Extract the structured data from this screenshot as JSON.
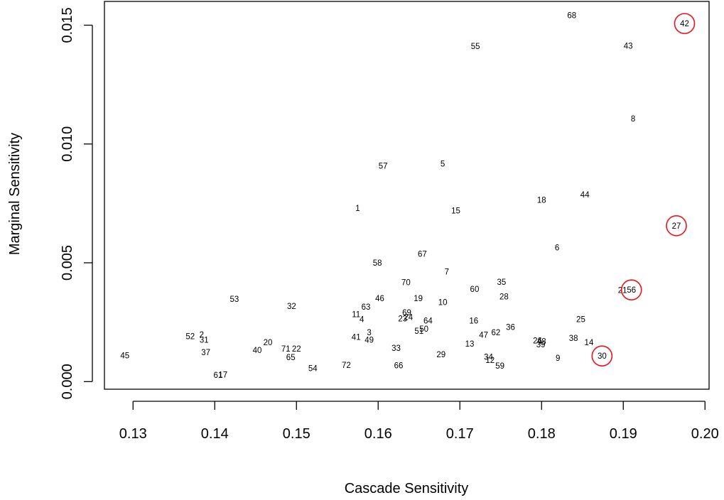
{
  "chart_data": {
    "type": "scatter",
    "xlabel": "Cascade Sensitivity",
    "ylabel": "Marginal Sensitivity",
    "xlim": [
      0.1265,
      0.2005
    ],
    "ylim": [
      -0.00032,
      0.016
    ],
    "xticks": [
      {
        "v": 0.13,
        "label": "0.13"
      },
      {
        "v": 0.14,
        "label": "0.14"
      },
      {
        "v": 0.15,
        "label": "0.15"
      },
      {
        "v": 0.16,
        "label": "0.16"
      },
      {
        "v": 0.17,
        "label": "0.17"
      },
      {
        "v": 0.18,
        "label": "0.18"
      },
      {
        "v": 0.19,
        "label": "0.19"
      },
      {
        "v": 0.2,
        "label": "0.20"
      }
    ],
    "yticks": [
      {
        "v": 0.0,
        "label": "0.000"
      },
      {
        "v": 0.005,
        "label": "0.005"
      },
      {
        "v": 0.01,
        "label": "0.010"
      },
      {
        "v": 0.015,
        "label": "0.015"
      }
    ],
    "grid": false,
    "highlight_color": "#e8141c",
    "points": [
      {
        "label": "68",
        "x": 0.1837,
        "y": 0.01542
      },
      {
        "label": "42",
        "x": 0.1975,
        "y": 0.01507,
        "highlight": true
      },
      {
        "label": "55",
        "x": 0.1719,
        "y": 0.01412
      },
      {
        "label": "43",
        "x": 0.1906,
        "y": 0.01413
      },
      {
        "label": "8",
        "x": 0.1912,
        "y": 0.01107
      },
      {
        "label": "57",
        "x": 0.1606,
        "y": 0.00908
      },
      {
        "label": "5",
        "x": 0.1679,
        "y": 0.00917
      },
      {
        "label": "44",
        "x": 0.1853,
        "y": 0.00787
      },
      {
        "label": "18",
        "x": 0.18,
        "y": 0.00764
      },
      {
        "label": "1",
        "x": 0.1575,
        "y": 0.0073
      },
      {
        "label": "15",
        "x": 0.1695,
        "y": 0.0072
      },
      {
        "label": "27",
        "x": 0.1965,
        "y": 0.00656,
        "highlight": true
      },
      {
        "label": "6",
        "x": 0.1819,
        "y": 0.00565
      },
      {
        "label": "67",
        "x": 0.1654,
        "y": 0.00538
      },
      {
        "label": "58",
        "x": 0.1599,
        "y": 0.005
      },
      {
        "label": "7",
        "x": 0.1684,
        "y": 0.00462
      },
      {
        "label": "70",
        "x": 0.1634,
        "y": 0.00418
      },
      {
        "label": "35",
        "x": 0.1751,
        "y": 0.0042
      },
      {
        "label": "60",
        "x": 0.1718,
        "y": 0.0039
      },
      {
        "label": "21",
        "x": 0.1899,
        "y": 0.00385
      },
      {
        "label": "56",
        "x": 0.191,
        "y": 0.00386,
        "highlight": true
      },
      {
        "label": "53",
        "x": 0.1424,
        "y": 0.00348
      },
      {
        "label": "46",
        "x": 0.1602,
        "y": 0.0035
      },
      {
        "label": "19",
        "x": 0.1649,
        "y": 0.0035
      },
      {
        "label": "28",
        "x": 0.1754,
        "y": 0.00358
      },
      {
        "label": "10",
        "x": 0.1679,
        "y": 0.00334
      },
      {
        "label": "32",
        "x": 0.1494,
        "y": 0.00318
      },
      {
        "label": "63",
        "x": 0.1585,
        "y": 0.00315
      },
      {
        "label": "11",
        "x": 0.1573,
        "y": 0.00283
      },
      {
        "label": "69",
        "x": 0.1635,
        "y": 0.00291
      },
      {
        "label": "4",
        "x": 0.158,
        "y": 0.00262
      },
      {
        "label": "23",
        "x": 0.163,
        "y": 0.00265
      },
      {
        "label": "24",
        "x": 0.1637,
        "y": 0.00272
      },
      {
        "label": "64",
        "x": 0.1661,
        "y": 0.00256
      },
      {
        "label": "16",
        "x": 0.1717,
        "y": 0.00257
      },
      {
        "label": "25",
        "x": 0.1848,
        "y": 0.00262
      },
      {
        "label": "36",
        "x": 0.1762,
        "y": 0.00229
      },
      {
        "label": "50",
        "x": 0.1656,
        "y": 0.00222
      },
      {
        "label": "51",
        "x": 0.165,
        "y": 0.00213
      },
      {
        "label": "62",
        "x": 0.1744,
        "y": 0.00207
      },
      {
        "label": "3",
        "x": 0.1589,
        "y": 0.00207
      },
      {
        "label": "47",
        "x": 0.1729,
        "y": 0.00196
      },
      {
        "label": "41",
        "x": 0.1573,
        "y": 0.00188
      },
      {
        "label": "49",
        "x": 0.1589,
        "y": 0.00176
      },
      {
        "label": "52",
        "x": 0.137,
        "y": 0.00191
      },
      {
        "label": "2",
        "x": 0.1384,
        "y": 0.00198
      },
      {
        "label": "31",
        "x": 0.1387,
        "y": 0.00175
      },
      {
        "label": "38",
        "x": 0.1839,
        "y": 0.00183
      },
      {
        "label": "14",
        "x": 0.1858,
        "y": 0.00165
      },
      {
        "label": "26",
        "x": 0.1795,
        "y": 0.00173
      },
      {
        "label": "48",
        "x": 0.18,
        "y": 0.0017
      },
      {
        "label": "39",
        "x": 0.1799,
        "y": 0.00157
      },
      {
        "label": "13",
        "x": 0.1712,
        "y": 0.0016
      },
      {
        "label": "20",
        "x": 0.1465,
        "y": 0.00165
      },
      {
        "label": "33",
        "x": 0.1622,
        "y": 0.00141
      },
      {
        "label": "71",
        "x": 0.1487,
        "y": 0.00139
      },
      {
        "label": "22",
        "x": 0.15,
        "y": 0.00139
      },
      {
        "label": "40",
        "x": 0.1452,
        "y": 0.00132
      },
      {
        "label": "37",
        "x": 0.1389,
        "y": 0.00124
      },
      {
        "label": "29",
        "x": 0.1677,
        "y": 0.00114
      },
      {
        "label": "45",
        "x": 0.129,
        "y": 0.0011
      },
      {
        "label": "65",
        "x": 0.1493,
        "y": 0.00103
      },
      {
        "label": "34",
        "x": 0.1735,
        "y": 0.00104
      },
      {
        "label": "9",
        "x": 0.182,
        "y": 0.001
      },
      {
        "label": "30",
        "x": 0.1874,
        "y": 0.00108,
        "highlight": true
      },
      {
        "label": "12",
        "x": 0.1737,
        "y": 0.00091
      },
      {
        "label": "72",
        "x": 0.1561,
        "y": 0.0007
      },
      {
        "label": "59",
        "x": 0.1749,
        "y": 0.00066
      },
      {
        "label": "66",
        "x": 0.1625,
        "y": 0.00068
      },
      {
        "label": "54",
        "x": 0.152,
        "y": 0.00056
      },
      {
        "label": "61",
        "x": 0.1404,
        "y": 0.00028
      },
      {
        "label": "17",
        "x": 0.141,
        "y": 0.00029
      }
    ]
  }
}
